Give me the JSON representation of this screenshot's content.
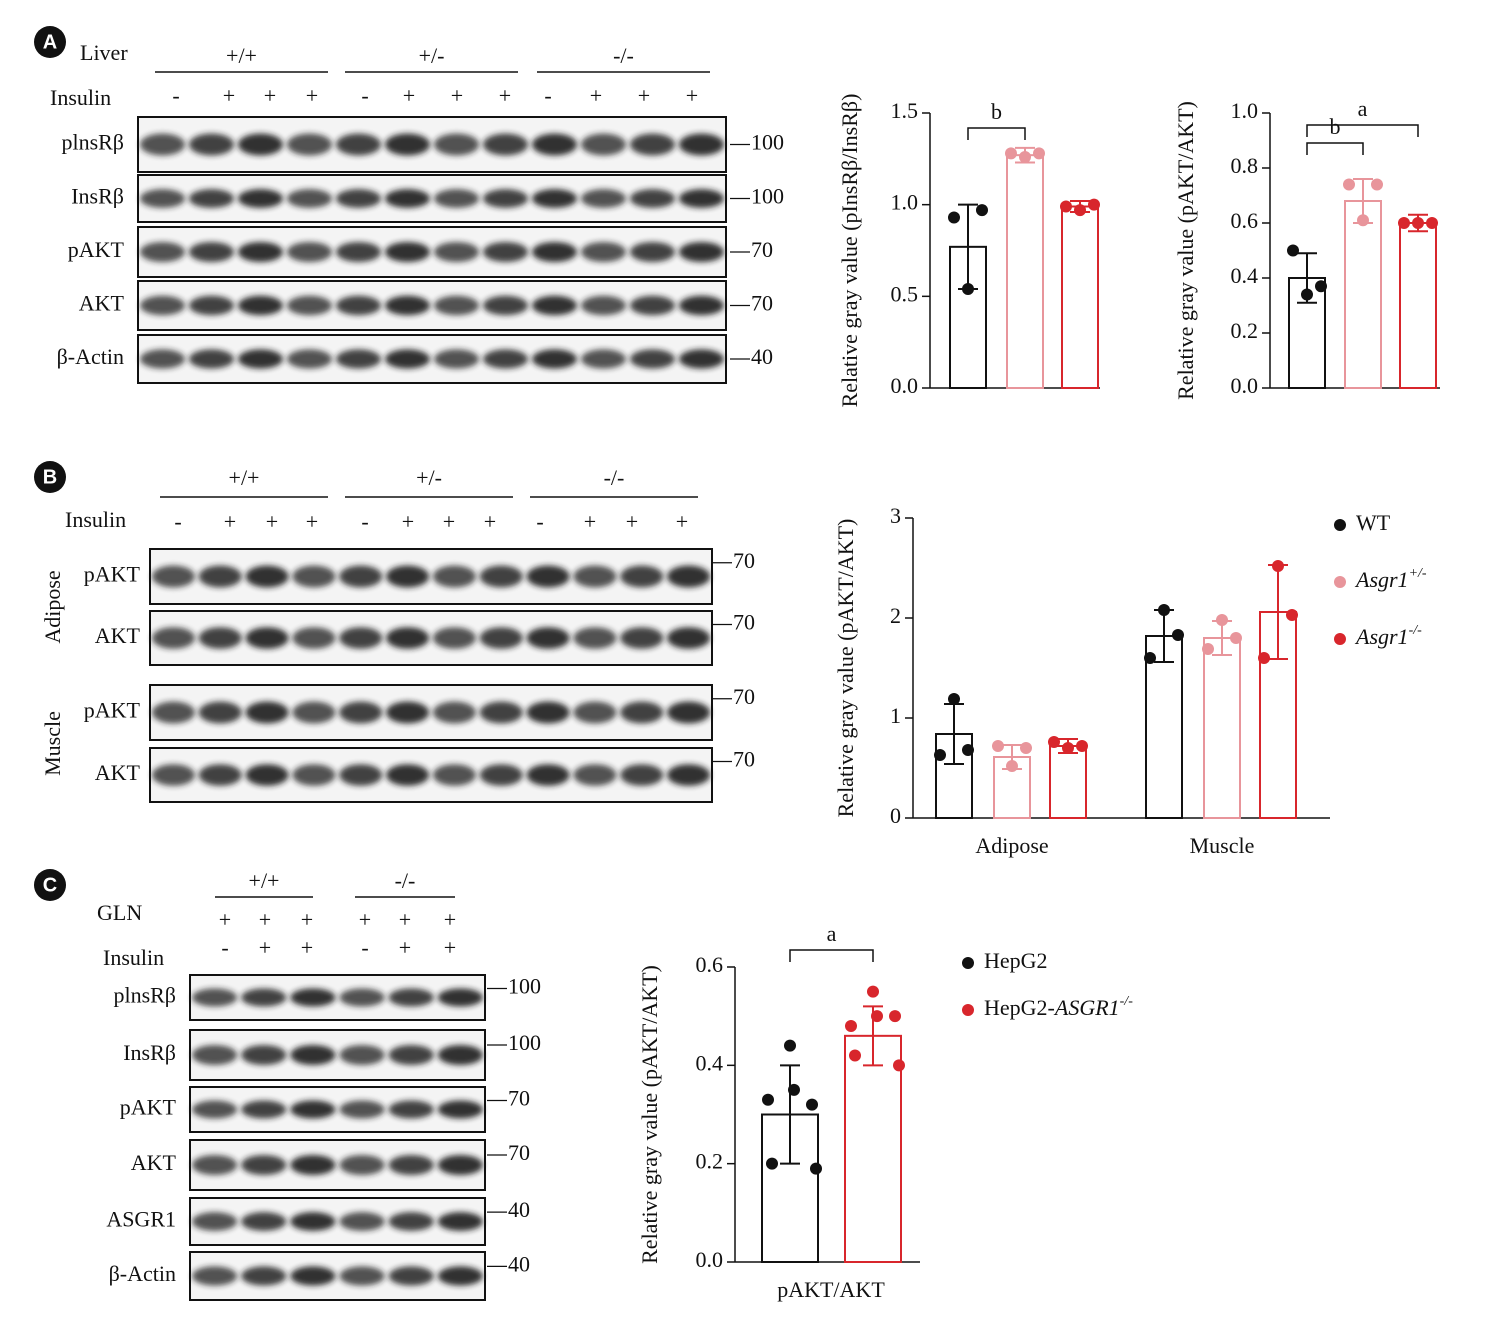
{
  "panels": [
    {
      "letter": "A",
      "tissue": "Liver",
      "groups": [
        "+/+",
        "+/-",
        "-/-"
      ],
      "treatments": [
        {
          "label": "Insulin",
          "signs": [
            "-",
            "+",
            "+",
            "+",
            "-",
            "+",
            "+",
            "+",
            "-",
            "+",
            "+",
            "+"
          ]
        }
      ],
      "sections": [
        {
          "rows": [
            {
              "label": "plnsRβ",
              "mw": 100
            },
            {
              "label": "InsRβ",
              "mw": 100
            },
            {
              "label": "pAKT",
              "mw": 70
            },
            {
              "label": "AKT",
              "mw": 70
            },
            {
              "label": "β-Actin",
              "mw": 40
            }
          ]
        }
      ]
    },
    {
      "letter": "B",
      "groups": [
        "+/+",
        "+/-",
        "-/-"
      ],
      "treatments": [
        {
          "label": "Insulin",
          "signs": [
            "-",
            "+",
            "+",
            "+",
            "-",
            "+",
            "+",
            "+",
            "-",
            "+",
            "+",
            "+"
          ]
        }
      ],
      "sections": [
        {
          "label": "Adipose",
          "rows": [
            {
              "label": "pAKT",
              "mw": 70
            },
            {
              "label": "AKT",
              "mw": 70
            }
          ]
        },
        {
          "label": "Muscle",
          "rows": [
            {
              "label": "pAKT",
              "mw": 70
            },
            {
              "label": "AKT",
              "mw": 70
            }
          ]
        }
      ]
    },
    {
      "letter": "C",
      "groups": [
        "+/+",
        "-/-"
      ],
      "treatments": [
        {
          "label": "GLN",
          "signs": [
            "+",
            "+",
            "+",
            "+",
            "+",
            "+"
          ]
        },
        {
          "label": "Insulin",
          "signs": [
            "-",
            "+",
            "+",
            "-",
            "+",
            "+"
          ]
        }
      ],
      "sections": [
        {
          "rows": [
            {
              "label": "plnsRβ",
              "mw": 100
            },
            {
              "label": "InsRβ",
              "mw": 100
            },
            {
              "label": "pAKT",
              "mw": 70
            },
            {
              "label": "AKT",
              "mw": 70
            },
            {
              "label": "ASGR1",
              "mw": 40
            },
            {
              "label": "β-Actin",
              "mw": 40
            }
          ]
        }
      ]
    }
  ],
  "chart_data": [
    {
      "type": "bar",
      "ylabel": "Relative gray value (pInsRβ/InsRβ)",
      "categories": [
        null,
        null,
        null
      ],
      "values": [
        0.77,
        1.27,
        0.99
      ],
      "errors": [
        0.23,
        0.04,
        0.03
      ],
      "points": [
        [
          0.93,
          0.54,
          0.97
        ],
        [
          1.28,
          1.26,
          1.28
        ],
        [
          0.99,
          0.97,
          1.0
        ]
      ],
      "colors": [
        "#111111",
        "#e8959b",
        "#d8262c"
      ],
      "ylim": [
        0,
        1.5
      ],
      "yticks": [
        {
          "value": 0,
          "label": "0.0"
        },
        0.5,
        {
          "value": 1,
          "label": "1.0"
        },
        1.5
      ],
      "annotations": [
        {
          "text": "b",
          "between": [
            0,
            1
          ]
        }
      ]
    },
    {
      "type": "bar",
      "ylabel": "Relative gray value (pAKT/AKT)",
      "categories": [
        null,
        null,
        null
      ],
      "values": [
        0.4,
        0.68,
        0.6
      ],
      "errors": [
        0.09,
        0.08,
        0.03
      ],
      "points": [
        [
          0.5,
          0.34,
          0.37
        ],
        [
          0.74,
          0.61,
          0.74
        ],
        [
          0.6,
          0.6,
          0.6
        ]
      ],
      "colors": [
        "#111111",
        "#e8959b",
        "#d8262c"
      ],
      "ylim": [
        0,
        1
      ],
      "yticks": [
        {
          "value": 0,
          "label": "0.0"
        },
        0.2,
        0.4,
        0.6,
        0.8,
        {
          "value": 1,
          "label": "1.0"
        }
      ],
      "annotations": [
        {
          "text": "a",
          "between": [
            0,
            2
          ]
        },
        {
          "text": "b",
          "between": [
            0,
            1
          ]
        }
      ]
    },
    {
      "type": "bar",
      "ylabel": "Relative gray value (pAKT/AKT)",
      "categories": [
        "Adipose",
        "Muscle"
      ],
      "series": [
        {
          "name": "WT",
          "color": "#111111",
          "values": [
            0.84,
            1.82
          ],
          "errors": [
            0.3,
            0.26
          ],
          "points": [
            [
              0.63,
              1.19,
              0.68
            ],
            [
              1.6,
              2.08,
              1.83
            ]
          ]
        },
        {
          "name": [
            {
              "text": "Asgr1",
              "style": "italic"
            },
            {
              "text": "+/-",
              "style": "italic-sup"
            }
          ],
          "color": "#e8959b",
          "values": [
            0.61,
            1.8
          ],
          "errors": [
            0.12,
            0.17
          ],
          "points": [
            [
              0.72,
              0.52,
              0.7
            ],
            [
              1.69,
              1.98,
              1.8
            ]
          ]
        },
        {
          "name": [
            {
              "text": "Asgr1",
              "style": "italic"
            },
            {
              "text": "-/-",
              "style": "italic-sup"
            }
          ],
          "color": "#d8262c",
          "values": [
            0.72,
            2.06
          ],
          "errors": [
            0.07,
            0.47
          ],
          "points": [
            [
              0.76,
              0.7,
              0.72
            ],
            [
              1.6,
              2.52,
              2.03
            ]
          ]
        }
      ],
      "ylim": [
        0,
        3
      ],
      "yticks": [
        0,
        1,
        2,
        3
      ]
    },
    {
      "type": "bar",
      "ylabel": "Relative gray value (pAKT/AKT)",
      "categories": [
        "pAKT/AKT"
      ],
      "series": [
        {
          "name": "HepG2",
          "color": "#111111",
          "values": [
            0.3
          ],
          "errors": [
            0.1
          ],
          "points": [
            [
              0.33,
              0.44,
              0.32,
              0.2,
              0.35,
              0.19
            ]
          ]
        },
        {
          "name": [
            {
              "text": "HepG2-"
            },
            {
              "text": "ASGR1",
              "style": "italic"
            },
            {
              "text": "-/-",
              "style": "italic-sup"
            }
          ],
          "color": "#d8262c",
          "values": [
            0.46
          ],
          "errors": [
            0.06
          ],
          "points": [
            [
              0.48,
              0.55,
              0.5,
              0.42,
              0.5,
              0.4
            ]
          ]
        }
      ],
      "ylim": [
        0,
        0.6
      ],
      "yticks": [
        {
          "value": 0,
          "label": "0.0"
        },
        0.2,
        0.4,
        0.6
      ],
      "annotations": [
        {
          "text": "a",
          "between": [
            0,
            1
          ]
        }
      ]
    }
  ]
}
